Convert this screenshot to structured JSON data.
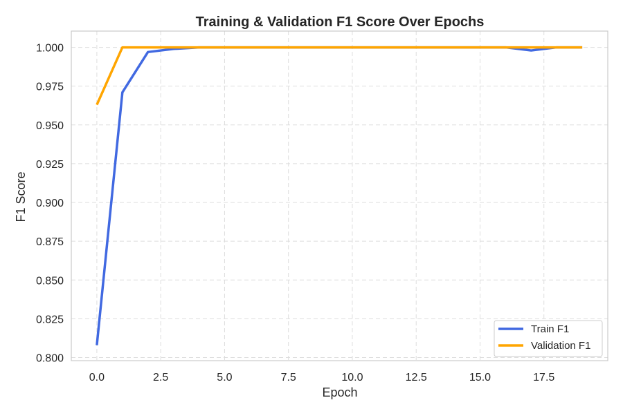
{
  "chart_data": {
    "type": "line",
    "title": "Training & Validation F1 Score Over Epochs",
    "xlabel": "Epoch",
    "ylabel": "F1 Score",
    "xlim": [
      -1,
      20
    ],
    "ylim": [
      0.798,
      1.0105
    ],
    "x_ticks": [
      0,
      2.5,
      5,
      7.5,
      10,
      12.5,
      15,
      17.5
    ],
    "x_tick_labels": [
      "0.0",
      "2.5",
      "5.0",
      "7.5",
      "10.0",
      "12.5",
      "15.0",
      "17.5"
    ],
    "y_ticks": [
      0.8,
      0.825,
      0.85,
      0.875,
      0.9,
      0.925,
      0.95,
      0.975,
      1.0
    ],
    "y_tick_labels": [
      "0.800",
      "0.825",
      "0.850",
      "0.875",
      "0.900",
      "0.925",
      "0.950",
      "0.975",
      "1.000"
    ],
    "grid": true,
    "legend_position": "bottom-right",
    "x": [
      0,
      1,
      2,
      3,
      4,
      5,
      6,
      7,
      8,
      9,
      10,
      11,
      12,
      13,
      14,
      15,
      16,
      17,
      18,
      19
    ],
    "series": [
      {
        "name": "Train F1",
        "color": "#4169E1",
        "values": [
          0.808,
          0.971,
          0.997,
          0.999,
          1.0,
          1.0,
          1.0,
          1.0,
          1.0,
          1.0,
          1.0,
          1.0,
          1.0,
          1.0,
          1.0,
          1.0,
          1.0,
          0.998,
          1.0,
          1.0
        ]
      },
      {
        "name": "Validation F1",
        "color": "#FFA500",
        "values": [
          0.963,
          1.0,
          1.0,
          1.0,
          1.0,
          1.0,
          1.0,
          1.0,
          1.0,
          1.0,
          1.0,
          1.0,
          1.0,
          1.0,
          1.0,
          1.0,
          1.0,
          1.0,
          1.0,
          1.0
        ]
      }
    ]
  }
}
